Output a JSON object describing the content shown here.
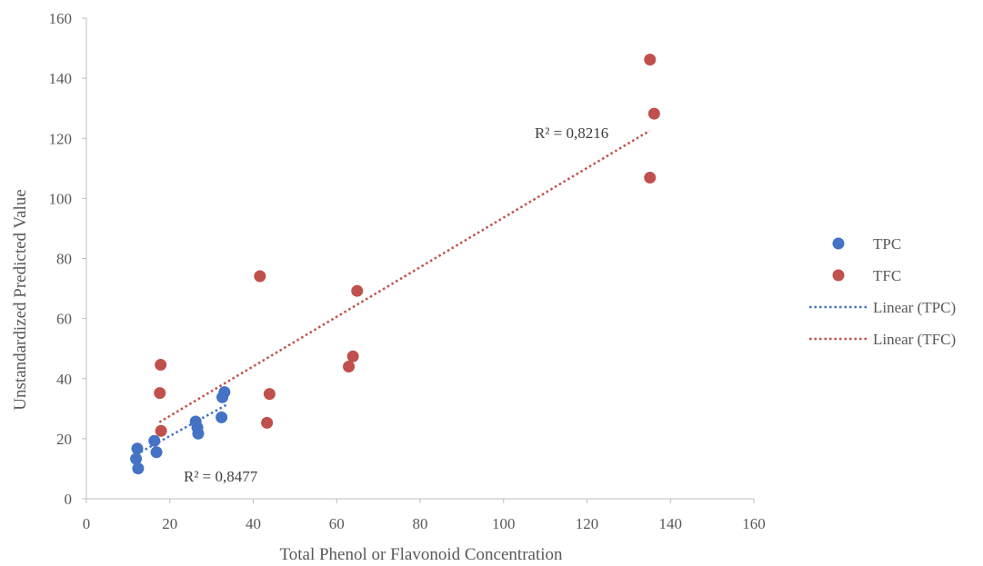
{
  "chart_data": {
    "type": "scatter",
    "title": "",
    "xlabel": "Total Phenol or Flavonoid Concentration",
    "ylabel": "Unstandardized Predicted Value",
    "xlim": [
      0,
      160
    ],
    "ylim": [
      0,
      160
    ],
    "x_ticks": [
      "0",
      "20",
      "40",
      "60",
      "80",
      "100",
      "120",
      "140",
      "160"
    ],
    "y_ticks": [
      "0",
      "20",
      "40",
      "60",
      "80",
      "100",
      "120",
      "140",
      "160"
    ],
    "grid": false,
    "legend_position": "right",
    "series": [
      {
        "name": "TPC",
        "color": "#4472C4",
        "points": [
          [
            12.2,
            16.7
          ],
          [
            11.9,
            13.3
          ],
          [
            12.4,
            10.1
          ],
          [
            16.3,
            19.3
          ],
          [
            16.8,
            15.5
          ],
          [
            26.2,
            25.7
          ],
          [
            26.6,
            23.7
          ],
          [
            26.8,
            21.7
          ],
          [
            32.4,
            27.1
          ],
          [
            32.6,
            33.8
          ],
          [
            33.1,
            35.5
          ]
        ],
        "trendline": {
          "label": "Linear (TPC)",
          "x": [
            12,
            33.5
          ],
          "y": [
            14.8,
            31.2
          ],
          "r2_text": "R² = 0,8477"
        }
      },
      {
        "name": "TFC",
        "color": "#C0504D",
        "points": [
          [
            17.8,
            44.6
          ],
          [
            17.6,
            35.2
          ],
          [
            17.9,
            22.6
          ],
          [
            41.6,
            74.1
          ],
          [
            43.3,
            25.3
          ],
          [
            43.9,
            34.9
          ],
          [
            62.9,
            44.0
          ],
          [
            63.9,
            47.4
          ],
          [
            64.9,
            69.2
          ],
          [
            135.1,
            146.2
          ],
          [
            135.1,
            106.9
          ],
          [
            136.1,
            128.2
          ]
        ],
        "trendline": {
          "label": "Linear (TFC)",
          "x": [
            17.5,
            135
          ],
          "y": [
            25.5,
            122.5
          ],
          "r2_text": "R² = 0,8216"
        }
      }
    ]
  }
}
